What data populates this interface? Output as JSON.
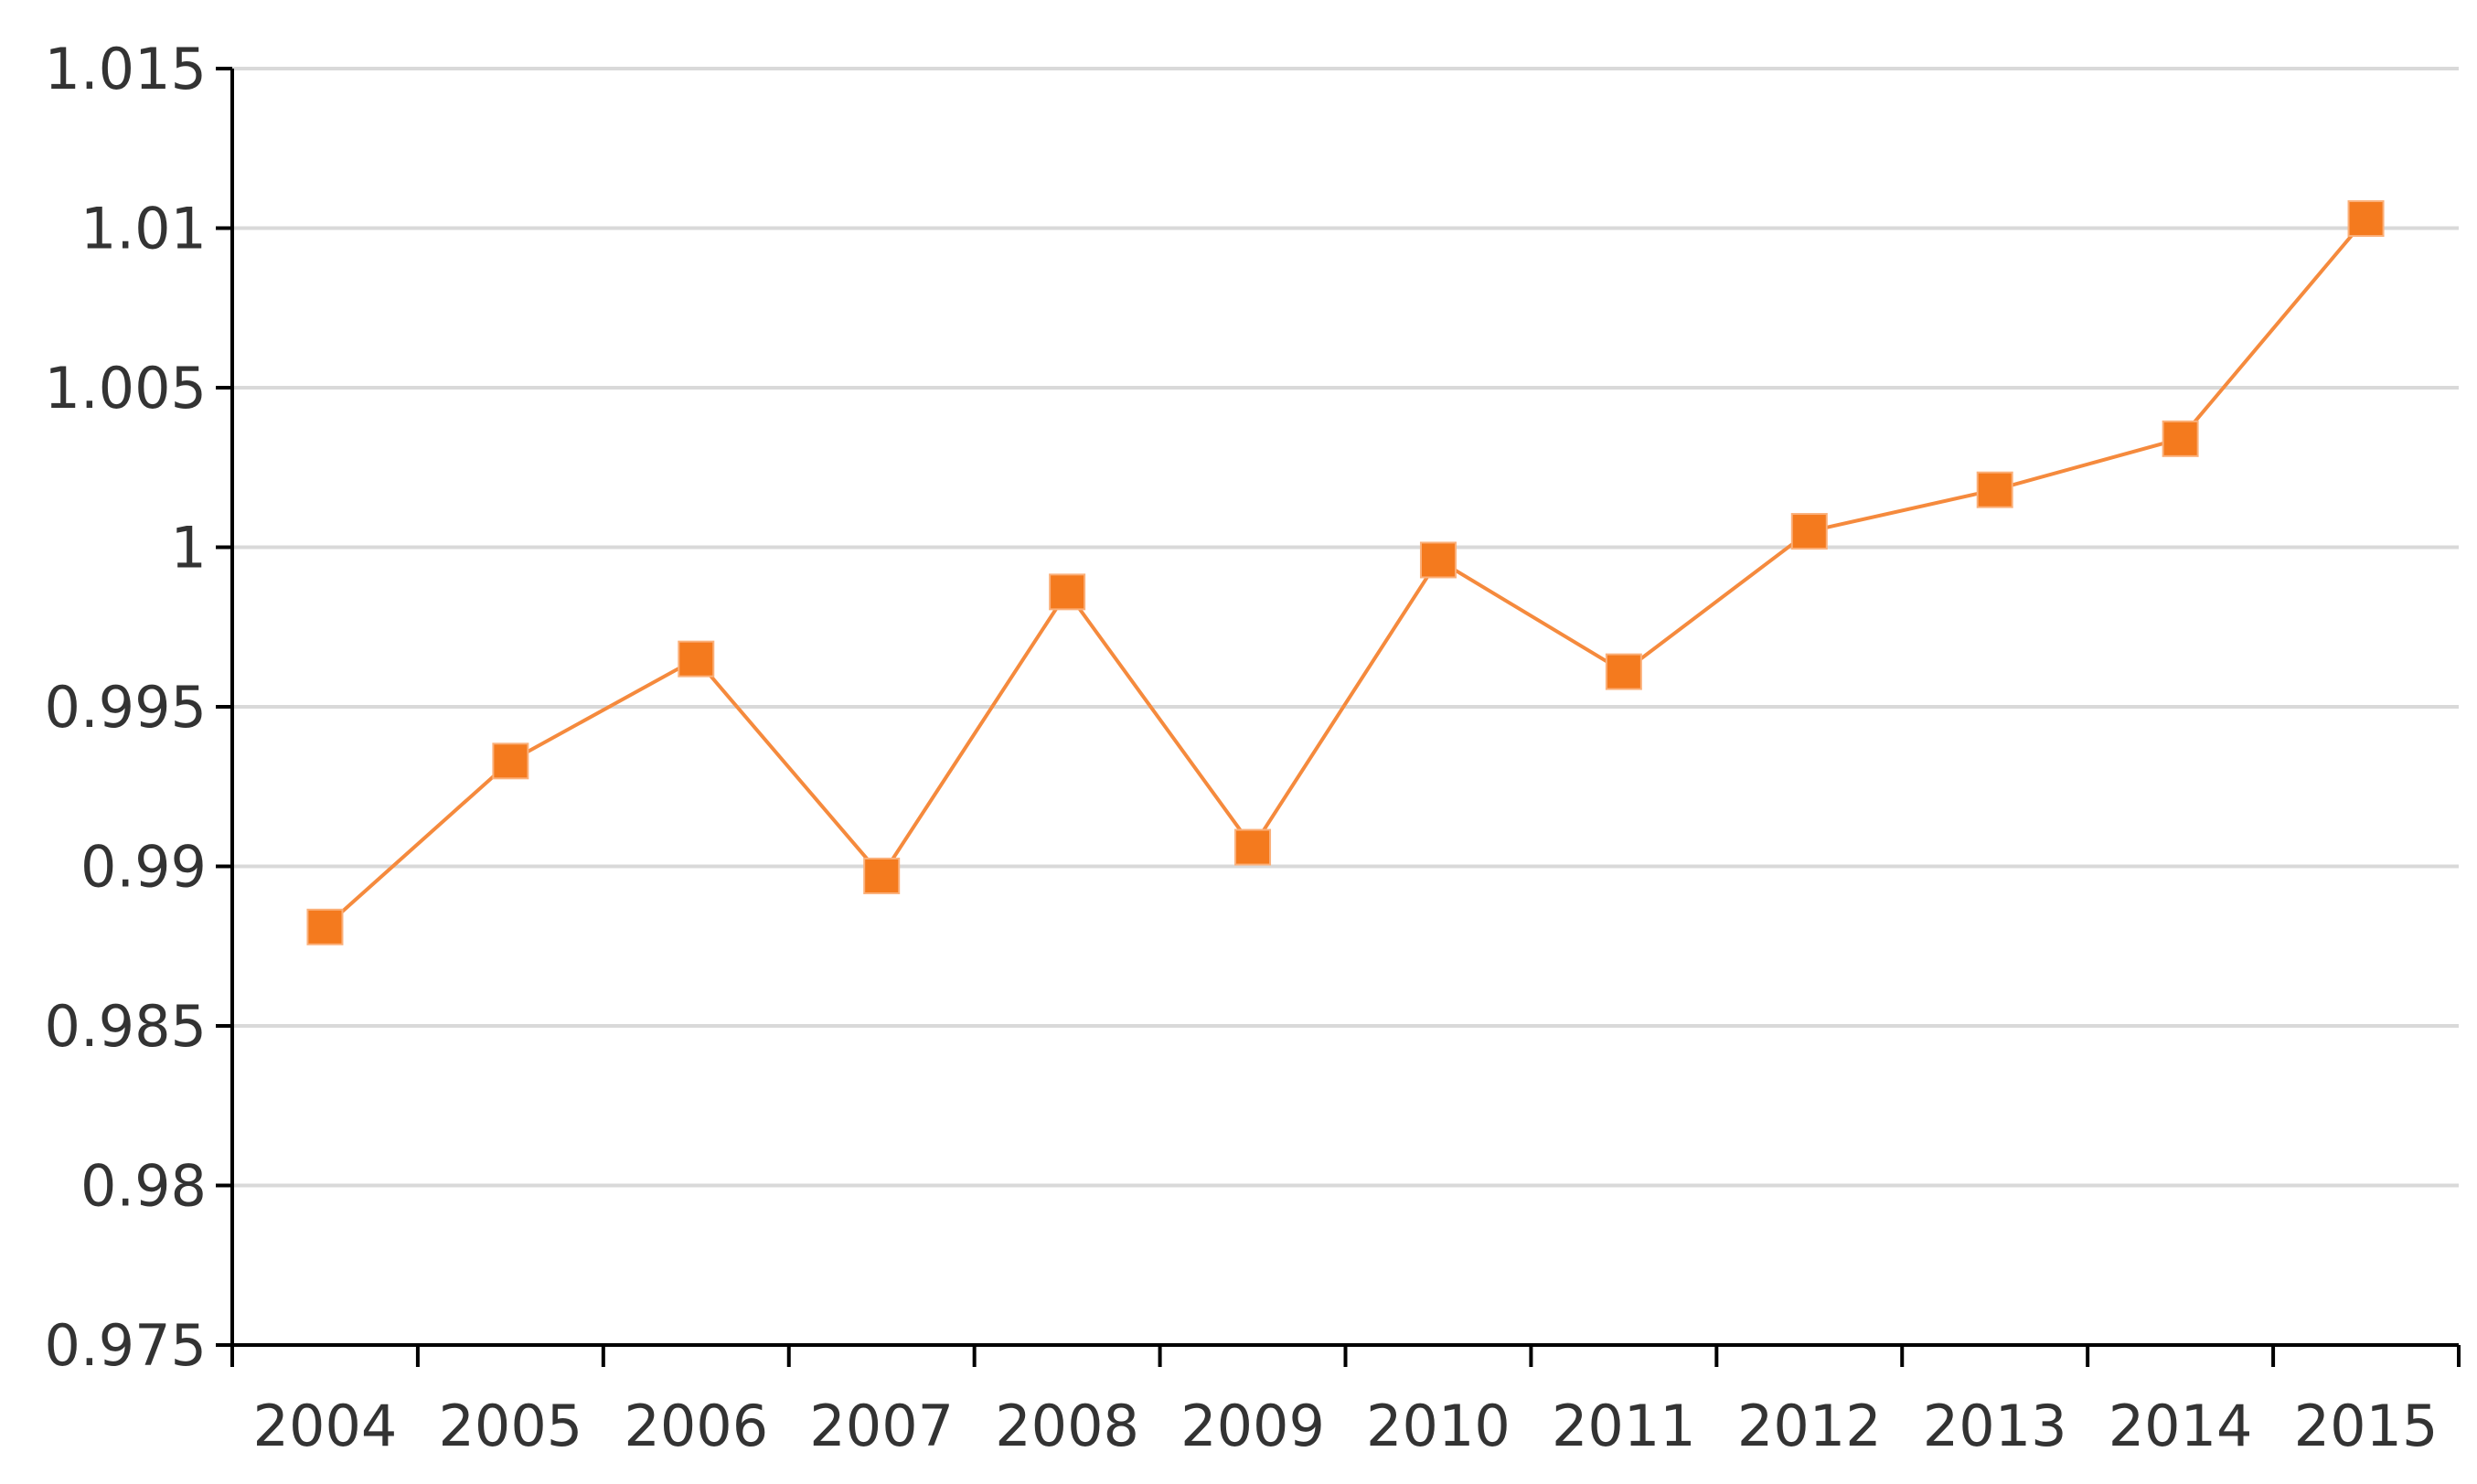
{
  "chart_data": {
    "type": "line",
    "categories": [
      "2004",
      "2005",
      "2006",
      "2007",
      "2008",
      "2009",
      "2010",
      "2011",
      "2012",
      "2013",
      "2014",
      "2015"
    ],
    "series": [
      {
        "values": [
          0.9881,
          0.9933,
          0.9965,
          0.9897,
          0.9986,
          0.9906,
          0.9996,
          0.9961,
          1.0005,
          1.0018,
          1.0034,
          1.0103
        ],
        "color": "#f47a1e",
        "marker": "square"
      }
    ],
    "yticks": [
      "0.975",
      "0.98",
      "0.985",
      "0.99",
      "0.995",
      "1",
      "1.005",
      "1.01",
      "1.015"
    ],
    "ylim": [
      0.975,
      1.015
    ],
    "grid": true,
    "title": "",
    "xlabel": "",
    "ylabel": ""
  }
}
